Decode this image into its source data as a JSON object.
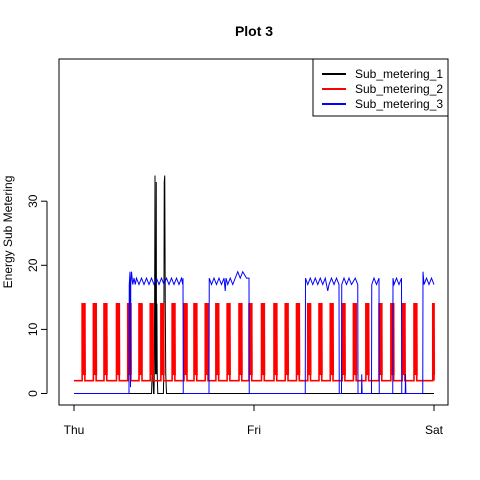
{
  "chart_data": {
    "type": "line",
    "title": "Plot 3",
    "xlabel": "",
    "ylabel": "Energy Sub Metering",
    "x_ticks": [
      "Thu",
      "Fri",
      "Sat"
    ],
    "x_range_minutes": [
      0,
      2880
    ],
    "y_ticks": [
      0,
      10,
      20,
      30
    ],
    "ylim": [
      0,
      38
    ],
    "legend_position": "top-right",
    "series": [
      {
        "name": "Sub_metering_1",
        "color": "#000000",
        "points": [
          [
            0,
            0
          ],
          [
            620,
            0
          ],
          [
            625,
            3
          ],
          [
            630,
            14
          ],
          [
            632,
            3
          ],
          [
            636,
            0
          ],
          [
            640,
            0
          ],
          [
            642,
            3
          ],
          [
            645,
            14
          ],
          [
            648,
            34
          ],
          [
            650,
            14
          ],
          [
            652,
            3
          ],
          [
            654,
            14
          ],
          [
            656,
            3
          ],
          [
            658,
            33
          ],
          [
            660,
            3
          ],
          [
            663,
            14
          ],
          [
            666,
            3
          ],
          [
            670,
            0
          ],
          [
            715,
            0
          ],
          [
            718,
            3
          ],
          [
            722,
            33
          ],
          [
            726,
            34
          ],
          [
            730,
            14
          ],
          [
            734,
            3
          ],
          [
            740,
            0
          ],
          [
            2880,
            0
          ]
        ]
      },
      {
        "name": "Sub_metering_2",
        "color": "#ff0000",
        "points": [
          [
            0,
            2
          ],
          [
            2880,
            2
          ]
        ],
        "spikes": [
          [
            65,
            22,
            14
          ],
          [
            155,
            22,
            14
          ],
          [
            240,
            22,
            14
          ],
          [
            340,
            22,
            14
          ],
          [
            430,
            25,
            14
          ],
          [
            520,
            24,
            14
          ],
          [
            610,
            22,
            14
          ],
          [
            695,
            22,
            14
          ],
          [
            785,
            22,
            14
          ],
          [
            880,
            24,
            14
          ],
          [
            960,
            22,
            14
          ],
          [
            1050,
            22,
            14
          ],
          [
            1135,
            22,
            14
          ],
          [
            1225,
            22,
            14
          ],
          [
            1320,
            22,
            14
          ],
          [
            1400,
            22,
            14
          ],
          [
            1500,
            22,
            14
          ],
          [
            1600,
            22,
            14
          ],
          [
            1690,
            22,
            14
          ],
          [
            1780,
            22,
            14
          ],
          [
            1870,
            22,
            14
          ],
          [
            1960,
            22,
            14
          ],
          [
            2050,
            22,
            14
          ],
          [
            2145,
            22,
            14
          ],
          [
            2235,
            22,
            14
          ],
          [
            2335,
            22,
            14
          ],
          [
            2440,
            22,
            14
          ],
          [
            2535,
            22,
            14
          ],
          [
            2625,
            22,
            14
          ],
          [
            2720,
            22,
            14
          ],
          [
            2870,
            10,
            14
          ]
        ]
      },
      {
        "name": "Sub_metering_3",
        "color": "#0000ff",
        "points": [
          [
            0,
            0
          ],
          [
            440,
            0
          ],
          [
            442,
            17
          ],
          [
            448,
            19
          ],
          [
            452,
            1
          ],
          [
            454,
            17
          ],
          [
            460,
            19
          ],
          [
            470,
            17
          ],
          [
            480,
            18
          ],
          [
            490,
            17
          ],
          [
            500,
            18
          ],
          [
            520,
            17
          ],
          [
            540,
            18
          ],
          [
            560,
            17
          ],
          [
            580,
            18
          ],
          [
            600,
            17
          ],
          [
            620,
            18
          ],
          [
            640,
            17
          ],
          [
            660,
            18
          ],
          [
            680,
            17
          ],
          [
            700,
            18
          ],
          [
            720,
            17
          ],
          [
            740,
            18
          ],
          [
            760,
            17
          ],
          [
            780,
            18
          ],
          [
            800,
            17
          ],
          [
            820,
            18
          ],
          [
            840,
            17
          ],
          [
            860,
            18
          ],
          [
            870,
            17
          ],
          [
            872,
            18
          ],
          [
            874,
            0
          ],
          [
            1080,
            0
          ],
          [
            1082,
            18
          ],
          [
            1100,
            17
          ],
          [
            1120,
            18
          ],
          [
            1140,
            17
          ],
          [
            1160,
            18
          ],
          [
            1180,
            17
          ],
          [
            1200,
            18
          ],
          [
            1210,
            16
          ],
          [
            1216,
            18
          ],
          [
            1230,
            17
          ],
          [
            1250,
            18
          ],
          [
            1270,
            17
          ],
          [
            1290,
            18
          ],
          [
            1310,
            19
          ],
          [
            1330,
            18
          ],
          [
            1350,
            19
          ],
          [
            1380,
            18
          ],
          [
            1400,
            18
          ],
          [
            1402,
            0
          ],
          [
            1850,
            0
          ],
          [
            1852,
            18
          ],
          [
            1870,
            17
          ],
          [
            1890,
            18
          ],
          [
            1910,
            17
          ],
          [
            1930,
            18
          ],
          [
            1950,
            17
          ],
          [
            1970,
            18
          ],
          [
            1990,
            17
          ],
          [
            2010,
            18
          ],
          [
            2030,
            16
          ],
          [
            2040,
            17
          ],
          [
            2060,
            18
          ],
          [
            2080,
            17
          ],
          [
            2100,
            18
          ],
          [
            2120,
            17
          ],
          [
            2122,
            0
          ],
          [
            2140,
            0
          ],
          [
            2142,
            17
          ],
          [
            2160,
            18
          ],
          [
            2180,
            17
          ],
          [
            2200,
            18
          ],
          [
            2220,
            17
          ],
          [
            2250,
            18
          ],
          [
            2270,
            17
          ],
          [
            2272,
            0
          ],
          [
            2300,
            0
          ],
          [
            2302,
            3
          ],
          [
            2305,
            0
          ],
          [
            2380,
            0
          ],
          [
            2382,
            17
          ],
          [
            2400,
            18
          ],
          [
            2420,
            17
          ],
          [
            2440,
            18
          ],
          [
            2442,
            0
          ],
          [
            2550,
            0
          ],
          [
            2552,
            18
          ],
          [
            2560,
            17
          ],
          [
            2580,
            18
          ],
          [
            2600,
            17
          ],
          [
            2620,
            18
          ],
          [
            2622,
            0
          ],
          [
            2650,
            0
          ],
          [
            2652,
            3
          ],
          [
            2655,
            0
          ],
          [
            2790,
            0
          ],
          [
            2792,
            19
          ],
          [
            2800,
            17
          ],
          [
            2820,
            18
          ],
          [
            2840,
            17
          ],
          [
            2860,
            18
          ],
          [
            2880,
            17
          ]
        ]
      }
    ]
  }
}
